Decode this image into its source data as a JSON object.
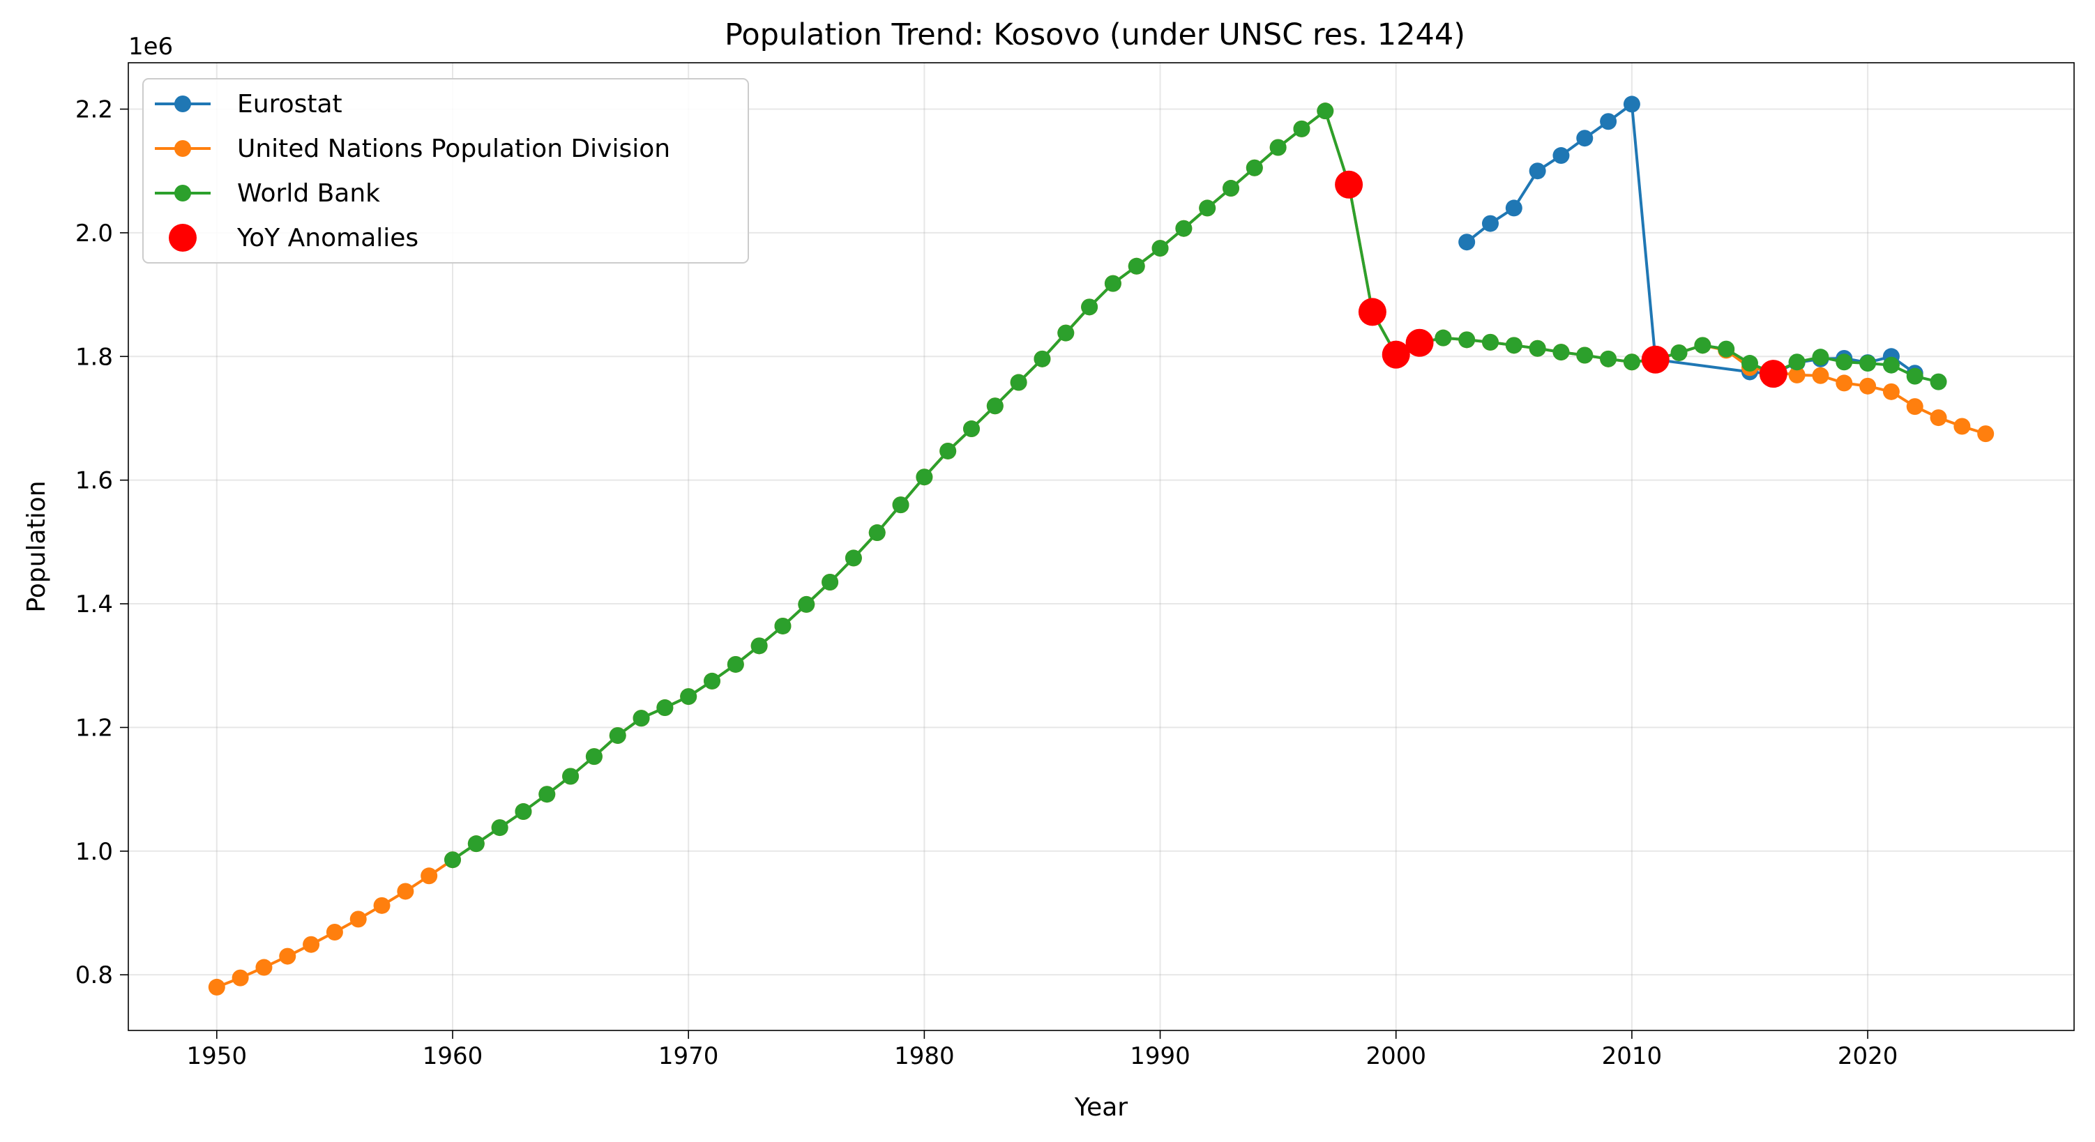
{
  "chart_data": {
    "type": "line",
    "title": "Population Trend: Kosovo (under UNSC res. 1244)",
    "xlabel": "Year",
    "ylabel": "Population",
    "y_offset_label": "1e6",
    "xlim": [
      1946.25,
      2028.75
    ],
    "ylim": [
      710000,
      2275000
    ],
    "xticks": [
      1950,
      1960,
      1970,
      1980,
      1990,
      2000,
      2010,
      2020
    ],
    "yticks": [
      800000,
      1000000,
      1200000,
      1400000,
      1600000,
      1800000,
      2000000,
      2200000
    ],
    "ytick_labels": [
      "0.8",
      "1.0",
      "1.2",
      "1.4",
      "1.6",
      "1.8",
      "2.0",
      "2.2"
    ],
    "grid": true,
    "legend_position": "top-left",
    "series": [
      {
        "name": "Eurostat",
        "color": "#1f77b4",
        "x": [
          2003,
          2004,
          2005,
          2006,
          2007,
          2008,
          2009,
          2010,
          2011,
          2015,
          2016,
          2017,
          2018,
          2019,
          2020,
          2021,
          2022
        ],
        "y": [
          1985000,
          2015000,
          2040000,
          2100000,
          2125000,
          2153000,
          2180000,
          2208000,
          1795000,
          1775000,
          1772000,
          1790000,
          1796000,
          1797000,
          1790000,
          1800000,
          1773000
        ]
      },
      {
        "name": "United Nations Population Division",
        "color": "#ff7f0e",
        "x": [
          1950,
          1951,
          1952,
          1953,
          1954,
          1955,
          1956,
          1957,
          1958,
          1959,
          1960,
          1961,
          1962,
          1963,
          1964,
          1965,
          1966,
          1967,
          1968,
          1969,
          1970,
          1971,
          1972,
          1973,
          1974,
          1975,
          1976,
          1977,
          1978,
          1979,
          1980,
          1981,
          1982,
          1983,
          1984,
          1985,
          1986,
          1987,
          1988,
          1989,
          1990,
          1991,
          1992,
          1993,
          1994,
          1995,
          1996,
          1997,
          1998,
          1999,
          2000,
          2001,
          2002,
          2003,
          2004,
          2005,
          2006,
          2007,
          2008,
          2009,
          2010,
          2011,
          2012,
          2013,
          2014,
          2015,
          2016,
          2017,
          2018,
          2019,
          2020,
          2021,
          2022,
          2023,
          2024,
          2025
        ],
        "y": [
          780000,
          795000,
          812000,
          830000,
          849000,
          869000,
          890000,
          912000,
          935000,
          960000,
          986000,
          1012000,
          1038000,
          1064000,
          1092000,
          1121000,
          1153000,
          1187000,
          1215000,
          1232000,
          1250000,
          1275000,
          1302000,
          1332000,
          1364000,
          1399000,
          1435000,
          1474000,
          1515000,
          1560000,
          1605000,
          1647000,
          1683000,
          1720000,
          1758000,
          1796000,
          1838000,
          1880000,
          1918000,
          1946000,
          1975000,
          2007000,
          2040000,
          2072000,
          2105000,
          2138000,
          2168000,
          2197000,
          2078000,
          1872000,
          1803000,
          1822000,
          1830000,
          1827000,
          1823000,
          1818000,
          1813000,
          1807000,
          1802000,
          1796000,
          1791000,
          1795000,
          1806000,
          1818000,
          1810000,
          1782000,
          1775000,
          1770000,
          1769000,
          1757000,
          1752000,
          1743000,
          1719000,
          1701000,
          1687000,
          1675000
        ]
      },
      {
        "name": "World Bank",
        "color": "#2ca02c",
        "x": [
          1960,
          1961,
          1962,
          1963,
          1964,
          1965,
          1966,
          1967,
          1968,
          1969,
          1970,
          1971,
          1972,
          1973,
          1974,
          1975,
          1976,
          1977,
          1978,
          1979,
          1980,
          1981,
          1982,
          1983,
          1984,
          1985,
          1986,
          1987,
          1988,
          1989,
          1990,
          1991,
          1992,
          1993,
          1994,
          1995,
          1996,
          1997,
          1998,
          1999,
          2000,
          2001,
          2002,
          2003,
          2004,
          2005,
          2006,
          2007,
          2008,
          2009,
          2010,
          2011,
          2012,
          2013,
          2014,
          2015,
          2016,
          2017,
          2018,
          2019,
          2020,
          2021,
          2022,
          2023
        ],
        "y": [
          986000,
          1012000,
          1038000,
          1064000,
          1092000,
          1121000,
          1153000,
          1187000,
          1215000,
          1232000,
          1250000,
          1275000,
          1302000,
          1332000,
          1364000,
          1399000,
          1435000,
          1474000,
          1515000,
          1560000,
          1605000,
          1647000,
          1683000,
          1720000,
          1758000,
          1796000,
          1838000,
          1880000,
          1918000,
          1946000,
          1975000,
          2007000,
          2040000,
          2072000,
          2105000,
          2138000,
          2168000,
          2197000,
          2078000,
          1872000,
          1803000,
          1822000,
          1830000,
          1827000,
          1823000,
          1818000,
          1813000,
          1807000,
          1802000,
          1796000,
          1791000,
          1795000,
          1806000,
          1818000,
          1812000,
          1789000,
          1773000,
          1791000,
          1799000,
          1791000,
          1789000,
          1786000,
          1768000,
          1759000
        ]
      }
    ],
    "anomalies": {
      "name": "YoY Anomalies",
      "color": "#ff0000",
      "x": [
        1998,
        1999,
        2000,
        2001,
        2011,
        2016
      ],
      "y": [
        2078000,
        1872000,
        1803000,
        1822000,
        1795000,
        1772000
      ]
    }
  }
}
